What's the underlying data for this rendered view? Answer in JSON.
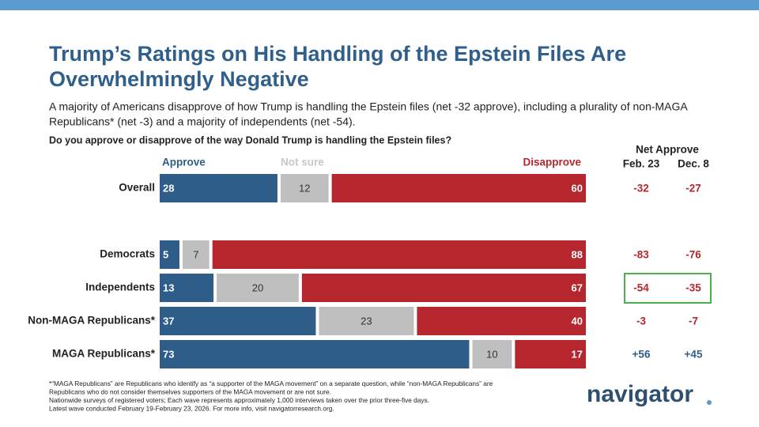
{
  "chart_data": {
    "type": "stacked_bar_horizontal",
    "title_lines": [
      "Trump’s Ratings on His Handling of the Epstein Files Are",
      "Overwhelmingly Negative"
    ],
    "subtitle_lines": [
      "A majority of Americans disapprove of how Trump is handling the Epstein files (net -32 approve), including a plurality of non-MAGA",
      "Republicans* (net -3) and a majority of independents (net -54)."
    ],
    "question": "Do you approve or disapprove of the way Donald Trump is handling the Epstein files?",
    "categories": [
      "Overall",
      "Democrats",
      "Independents",
      "Non-MAGA Republicans*",
      "MAGA Republicans*"
    ],
    "xlim": [
      0,
      100
    ],
    "series": [
      {
        "name": "Approve",
        "color": "#2f5d8a",
        "label_color": "#ffffff",
        "values": [
          28,
          5,
          13,
          37,
          73
        ]
      },
      {
        "name": "Not sure",
        "color": "#bfbfbf",
        "label_color": "#333333",
        "values": [
          12,
          7,
          20,
          23,
          10
        ]
      },
      {
        "name": "Disapprove",
        "color": "#b5262e",
        "label_color": "#ffffff",
        "values": [
          60,
          88,
          67,
          40,
          17
        ]
      }
    ],
    "net_approve": {
      "title": "Net Approve",
      "negative_color": "#b5262e",
      "positive_color": "#2f5d8a",
      "columns": [
        {
          "name": "Feb. 23",
          "values": [
            -32,
            -83,
            -54,
            -3,
            56
          ],
          "value_labels": [
            "-32",
            "-83",
            "-54",
            "-3",
            "+56"
          ]
        },
        {
          "name": "Dec. 8",
          "values": [
            -27,
            -76,
            -35,
            -7,
            45
          ],
          "value_labels": [
            "-27",
            "-76",
            "-35",
            "-7",
            "+45"
          ]
        }
      ]
    },
    "footnotes": [
      "*“MAGA Republicans” are Republicans who identify as “a supporter of the MAGA movement” on a separate question, while “non-MAGA Republicans” are",
      "Republicans who do not consider themselves supporters of the MAGA movement or are not sure.",
      "Nationwide surveys of registered voters; Each wave represents approximately 1,000 interviews taken over the prior three-five days.",
      "Latest wave conducted February 19-February 23, 2026. For more info, visit navigatorresearch.org."
    ],
    "logo": "navigator"
  }
}
